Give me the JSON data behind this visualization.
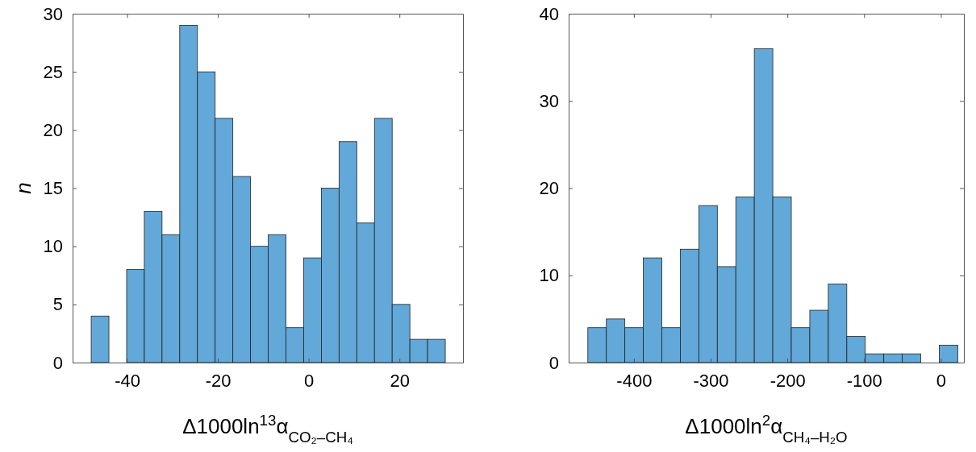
{
  "chart_data": [
    {
      "type": "histogram",
      "xlabel": "Δ1000ln$^{13}$α$_{CO₂–CH₄}$",
      "ylabel": "n",
      "color": "#62a8d8",
      "bins": [
        -47.9,
        -44,
        -40.1,
        -36.2,
        -32.3,
        -28.4,
        -24.5,
        -20.6,
        -16.7,
        -12.8,
        -8.9,
        -5,
        -1.1,
        2.8,
        6.7,
        10.6,
        14.5,
        18.4,
        22.3,
        26.2,
        30.1
      ],
      "values": [
        4,
        0,
        8,
        13,
        11,
        29,
        25,
        21,
        16,
        10,
        11,
        3,
        9,
        15,
        19,
        12,
        21,
        5,
        2,
        2
      ],
      "xlim": [
        -52,
        34
      ],
      "xticks": [
        -40,
        -20,
        0,
        20
      ],
      "ylim": [
        0,
        30
      ],
      "yticks": [
        0,
        5,
        10,
        15,
        20,
        25,
        30
      ],
      "grid": false
    },
    {
      "type": "histogram",
      "xlabel": "Δ1000ln$^{2}$α$_{CH₄–H₂O}$",
      "color": "#62a8d8",
      "bins": [
        -460,
        -435.9,
        -411.8,
        -387.7,
        -363.6,
        -339.5,
        -315.4,
        -291.3,
        -267.2,
        -243.1,
        -219,
        -194.9,
        -170.8,
        -146.7,
        -122.6,
        -98.5,
        -74.4,
        -50.3,
        -26.2,
        -2.1,
        22
      ],
      "values": [
        4,
        5,
        4,
        12,
        4,
        13,
        18,
        11,
        19,
        36,
        19,
        4,
        6,
        9,
        3,
        1,
        1,
        1,
        0,
        2
      ],
      "xlim": [
        -485,
        30
      ],
      "xticks": [
        -400,
        -300,
        -200,
        -100,
        0
      ],
      "ylim": [
        0,
        40
      ],
      "yticks": [
        0,
        10,
        20,
        30,
        40
      ],
      "grid": false
    }
  ]
}
